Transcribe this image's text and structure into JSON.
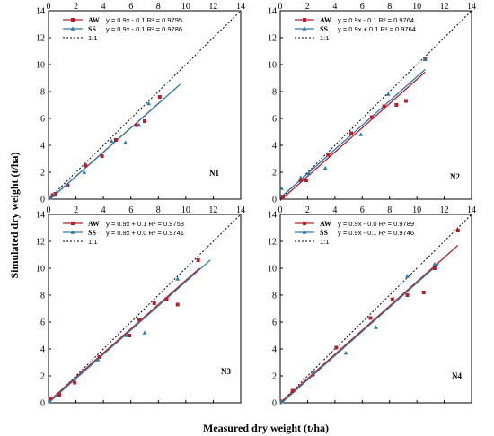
{
  "figure": {
    "ylabel": "Simulated dry weight (t/ha)",
    "xlabel": "Measured dry weight (t/ha)"
  },
  "chart_data": [
    {
      "type": "scatter",
      "panel_label": "N1",
      "xlim": [
        0,
        14
      ],
      "ylim": [
        0,
        14
      ],
      "xticks": [
        0,
        2,
        4,
        6,
        8,
        10,
        12,
        14
      ],
      "yticks": [
        0,
        2,
        4,
        6,
        8,
        10,
        12,
        14
      ],
      "legend_position": "top-left",
      "series": [
        {
          "name": "AW",
          "equation": "y = 0.9x - 0.1  R² = 0.9795",
          "color": "#b5202a",
          "marker": "square",
          "fit": {
            "slope": 0.9,
            "intercept": -0.1,
            "x_range": [
              0,
              8.1
            ]
          },
          "points": [
            [
              0.1,
              0.1
            ],
            [
              0.3,
              0.3
            ],
            [
              0.5,
              0.4
            ],
            [
              1.4,
              1.0
            ],
            [
              2.7,
              2.5
            ],
            [
              3.9,
              3.2
            ],
            [
              4.9,
              4.4
            ],
            [
              6.4,
              5.5
            ],
            [
              7.0,
              5.8
            ],
            [
              8.1,
              7.6
            ]
          ]
        },
        {
          "name": "SS",
          "equation": "y = 0.9x - 0.1  R² = 0.9786",
          "color": "#2f7ba8",
          "marker": "triangle",
          "fit": {
            "slope": 0.9,
            "intercept": -0.1,
            "x_range": [
              0,
              9.6
            ]
          },
          "points": [
            [
              0.1,
              0.1
            ],
            [
              0.4,
              0.3
            ],
            [
              1.3,
              1.0
            ],
            [
              2.6,
              2.0
            ],
            [
              4.6,
              4.3
            ],
            [
              5.6,
              4.2
            ],
            [
              6.6,
              5.5
            ],
            [
              7.3,
              7.1
            ]
          ]
        },
        {
          "name": "1:1",
          "style": "dotted",
          "color": "#000000",
          "x_range": [
            0,
            14
          ]
        }
      ]
    },
    {
      "type": "scatter",
      "panel_label": "N2",
      "xlim": [
        0,
        14
      ],
      "ylim": [
        0,
        14
      ],
      "xticks": [
        0,
        2,
        4,
        6,
        8,
        10,
        12,
        14
      ],
      "yticks": [
        0,
        2,
        4,
        6,
        8,
        10,
        12,
        14
      ],
      "legend_position": "top-left",
      "series": [
        {
          "name": "AW",
          "equation": "y = 0.9x - 0.1  R² = 0.9764",
          "color": "#b5202a",
          "marker": "square",
          "fit": {
            "slope": 0.9,
            "intercept": -0.1,
            "x_range": [
              0,
              10.6
            ]
          },
          "points": [
            [
              0.2,
              0.2
            ],
            [
              1.5,
              1.4
            ],
            [
              1.9,
              1.4
            ],
            [
              3.5,
              3.3
            ],
            [
              5.2,
              4.9
            ],
            [
              6.7,
              6.1
            ],
            [
              7.6,
              6.9
            ],
            [
              8.5,
              7.0
            ],
            [
              9.2,
              7.3
            ],
            [
              10.6,
              10.4
            ]
          ]
        },
        {
          "name": "SS",
          "equation": "y = 0.9x + 0.1  R² = 0.9764",
          "color": "#2f7ba8",
          "marker": "triangle",
          "fit": {
            "slope": 0.9,
            "intercept": 0.1,
            "x_range": [
              0,
              10.6
            ]
          },
          "points": [
            [
              0.1,
              0.8
            ],
            [
              1.5,
              1.6
            ],
            [
              2.1,
              1.9
            ],
            [
              3.3,
              2.3
            ],
            [
              5.9,
              4.8
            ],
            [
              7.9,
              7.8
            ],
            [
              10.6,
              10.4
            ]
          ]
        },
        {
          "name": "1:1",
          "style": "dotted",
          "color": "#000000",
          "x_range": [
            0,
            14
          ]
        }
      ]
    },
    {
      "type": "scatter",
      "panel_label": "N3",
      "xlim": [
        0,
        14
      ],
      "ylim": [
        0,
        14
      ],
      "xticks": [
        0,
        2,
        4,
        6,
        8,
        10,
        12,
        14
      ],
      "yticks": [
        0,
        2,
        4,
        6,
        8,
        10,
        12,
        14
      ],
      "legend_position": "top-left",
      "series": [
        {
          "name": "AW",
          "equation": "y = 0.9x + 0.1  R² = 0.9753",
          "color": "#b5202a",
          "marker": "square",
          "fit": {
            "slope": 0.9,
            "intercept": 0.1,
            "x_range": [
              0,
              11.0
            ]
          },
          "points": [
            [
              0.1,
              0.3
            ],
            [
              0.8,
              0.6
            ],
            [
              1.9,
              1.5
            ],
            [
              3.7,
              3.4
            ],
            [
              5.9,
              5.0
            ],
            [
              6.6,
              6.2
            ],
            [
              7.7,
              7.4
            ],
            [
              8.6,
              7.7
            ],
            [
              9.4,
              7.3
            ],
            [
              10.9,
              10.6
            ]
          ]
        },
        {
          "name": "SS",
          "equation": "y = 0.9x + 0.0  R² = 0.9741",
          "color": "#2f7ba8",
          "marker": "triangle",
          "fit": {
            "slope": 0.9,
            "intercept": 0.0,
            "x_range": [
              0,
              11.8
            ]
          },
          "points": [
            [
              0.1,
              0.1
            ],
            [
              1.9,
              1.8
            ],
            [
              3.6,
              3.2
            ],
            [
              5.7,
              5.0
            ],
            [
              7.0,
              5.2
            ],
            [
              9.4,
              9.2
            ]
          ]
        },
        {
          "name": "1:1",
          "style": "dotted",
          "color": "#000000",
          "x_range": [
            0,
            14
          ]
        }
      ]
    },
    {
      "type": "scatter",
      "panel_label": "N4",
      "xlim": [
        0,
        14
      ],
      "ylim": [
        0,
        14
      ],
      "xticks": [
        0,
        2,
        4,
        6,
        8,
        10,
        12,
        14
      ],
      "yticks": [
        0,
        2,
        4,
        6,
        8,
        10,
        12,
        14
      ],
      "legend_position": "top-left",
      "series": [
        {
          "name": "AW",
          "equation": "y = 0.9x - 0.0  R² = 0.9789",
          "color": "#b5202a",
          "marker": "square",
          "fit": {
            "slope": 0.9,
            "intercept": 0.0,
            "x_range": [
              0,
              13.0
            ]
          },
          "points": [
            [
              0.1,
              0.1
            ],
            [
              0.9,
              0.9
            ],
            [
              2.4,
              2.1
            ],
            [
              4.1,
              4.1
            ],
            [
              6.6,
              6.3
            ],
            [
              8.2,
              7.7
            ],
            [
              9.3,
              8.0
            ],
            [
              10.5,
              8.2
            ],
            [
              11.3,
              10.0
            ],
            [
              13.0,
              12.8
            ]
          ]
        },
        {
          "name": "SS",
          "equation": "y = 0.9x - 0.1  R² = 0.9746",
          "color": "#2f7ba8",
          "marker": "triangle",
          "fit": {
            "slope": 0.9,
            "intercept": -0.1,
            "x_range": [
              0,
              11.6
            ]
          },
          "points": [
            [
              0.1,
              0.1
            ],
            [
              2.4,
              2.2
            ],
            [
              4.8,
              3.7
            ],
            [
              7.0,
              5.6
            ],
            [
              9.3,
              9.4
            ],
            [
              11.3,
              10.3
            ]
          ]
        },
        {
          "name": "1:1",
          "style": "dotted",
          "color": "#000000",
          "x_range": [
            0,
            14
          ]
        }
      ]
    }
  ]
}
